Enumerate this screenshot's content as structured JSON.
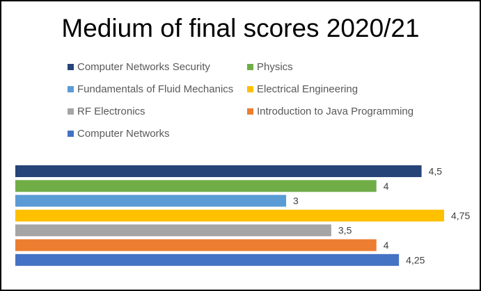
{
  "chart_data": {
    "type": "bar",
    "orientation": "horizontal",
    "title": "Medium of final scores 2020/21",
    "legend_position": "top",
    "grid": false,
    "xlim": [
      0,
      4.75
    ],
    "series": [
      {
        "name": "Computer Networks Security",
        "value": 4.5,
        "label": "4,5",
        "color": "#264478"
      },
      {
        "name": "Physics",
        "value": 4,
        "label": "4",
        "color": "#70AD47"
      },
      {
        "name": "Fundamentals of Fluid Mechanics",
        "value": 3,
        "label": "3",
        "color": "#5B9BD5"
      },
      {
        "name": "Electrical Engineering",
        "value": 4.75,
        "label": "4,75",
        "color": "#FFC000"
      },
      {
        "name": "RF Electronics",
        "value": 3.5,
        "label": "3,5",
        "color": "#A5A5A5"
      },
      {
        "name": "Introduction to Java Programming",
        "value": 4,
        "label": "4",
        "color": "#ED7D31"
      },
      {
        "name": "Computer Networks",
        "value": 4.25,
        "label": "4,25",
        "color": "#4472C4"
      }
    ]
  }
}
